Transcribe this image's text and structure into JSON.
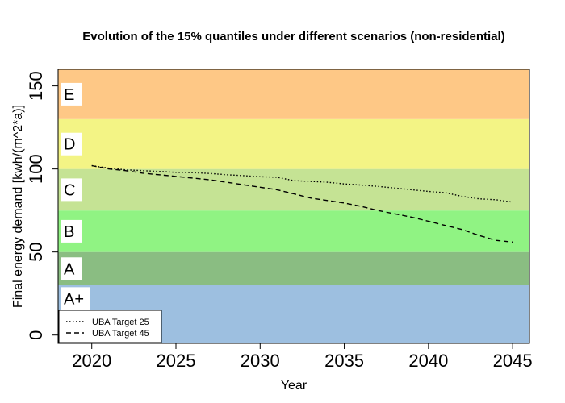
{
  "chart_data": {
    "type": "line",
    "title": "Evolution of the 15% quantiles under different scenarios (non-residential)",
    "xlabel": "Year",
    "ylabel": "Final energy demand [kwh/(m^2*a)]",
    "xlim": [
      2018,
      2046
    ],
    "ylim": [
      -5,
      160
    ],
    "xticks": [
      2020,
      2025,
      2030,
      2035,
      2040,
      2045
    ],
    "yticks": [
      0,
      50,
      100,
      150
    ],
    "grid": false,
    "legend": "bottom-left",
    "bands": [
      {
        "label": "A+",
        "from": -5,
        "to": 30,
        "color": "#9dbfe0"
      },
      {
        "label": "A",
        "from": 30,
        "to": 50,
        "color": "#8abd82"
      },
      {
        "label": "B",
        "from": 50,
        "to": 75,
        "color": "#90f383"
      },
      {
        "label": "C",
        "from": 75,
        "to": 100,
        "color": "#c5e394"
      },
      {
        "label": "D",
        "from": 100,
        "to": 130,
        "color": "#f3f485"
      },
      {
        "label": "E",
        "from": 130,
        "to": 160,
        "color": "#fec886"
      }
    ],
    "x": [
      2020,
      2021,
      2022,
      2023,
      2024,
      2025,
      2026,
      2027,
      2028,
      2029,
      2030,
      2031,
      2032,
      2033,
      2034,
      2035,
      2036,
      2037,
      2038,
      2039,
      2040,
      2041,
      2042,
      2043,
      2044,
      2045
    ],
    "series": [
      {
        "name": "UBA Target 25",
        "dash": "dotted",
        "values": [
          102,
          100.5,
          99.5,
          99,
          98.5,
          98,
          97.8,
          97.3,
          96.5,
          96,
          95.3,
          95,
          93,
          92.5,
          92,
          91,
          90.3,
          89.5,
          88.5,
          87.5,
          86.5,
          85.7,
          83.5,
          82,
          81.5,
          80
        ]
      },
      {
        "name": "UBA Target 45",
        "dash": "dashed",
        "values": [
          102,
          100,
          99,
          97.5,
          96.5,
          95.5,
          94.5,
          93.5,
          92,
          90.5,
          89,
          87.5,
          85,
          82.5,
          81,
          79.5,
          77.5,
          75,
          73,
          71,
          68.5,
          66,
          63.5,
          60,
          57,
          56
        ]
      }
    ]
  }
}
